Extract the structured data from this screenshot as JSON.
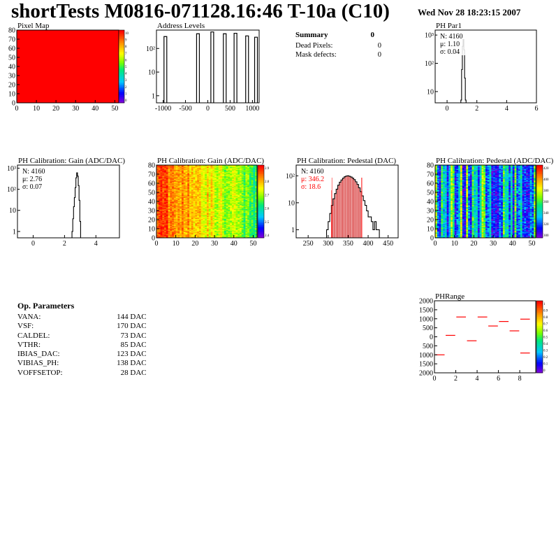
{
  "header": {
    "title": "shortTests M0816-071128.16:46 T-10a (C10)",
    "date": "Wed Nov 28 18:23:15 2007"
  },
  "summary": {
    "title": "Summary",
    "title_value": "0",
    "rows": [
      {
        "label": "Dead Pixels:",
        "value": "0"
      },
      {
        "label": "Mask defects:",
        "value": "0"
      }
    ]
  },
  "op_params": {
    "title": "Op. Parameters",
    "rows": [
      {
        "name": "VANA:",
        "value": "144 DAC"
      },
      {
        "name": "VSF:",
        "value": "170 DAC"
      },
      {
        "name": "CALDEL:",
        "value": "73 DAC"
      },
      {
        "name": "VTHR:",
        "value": "85 DAC"
      },
      {
        "name": "IBIAS_DAC:",
        "value": "123 DAC"
      },
      {
        "name": "VIBIAS_PH:",
        "value": "138 DAC"
      },
      {
        "name": "VOFFSETOP:",
        "value": "28 DAC"
      }
    ]
  },
  "colors": {
    "hist_line": "#000000",
    "red_marker": "#ff0000",
    "pedestal_fill": "#cc0000",
    "pixel_map_fill": "#ff0000"
  },
  "chart_data": [
    {
      "id": "pixel-map",
      "type": "heatmap",
      "title": "Pixel Map",
      "xlim": [
        0,
        52
      ],
      "ylim": [
        0,
        80
      ],
      "x_ticks": [
        0,
        10,
        20,
        30,
        40,
        50
      ],
      "y_ticks": [
        0,
        10,
        20,
        30,
        40,
        50,
        60,
        70,
        80
      ],
      "uniform_value": 10,
      "palette_ticks": [
        "10",
        "9",
        "8",
        "7",
        "6",
        "5",
        "4",
        "3",
        "2",
        "1",
        "0"
      ]
    },
    {
      "id": "address-levels",
      "type": "bar",
      "title": "Address Levels",
      "xlim": [
        -1150,
        1150
      ],
      "y_log": true,
      "ylim": [
        0.5,
        600
      ],
      "x_ticks": [
        -1000,
        -500,
        0,
        500,
        1000
      ],
      "y_ticks": [
        {
          "v": 1,
          "label": "1"
        },
        {
          "v": 10,
          "label": "10"
        },
        {
          "v": 100,
          "label": "10²"
        }
      ],
      "peaks": [
        {
          "x": -950,
          "y": 320
        },
        {
          "x": -220,
          "y": 420
        },
        {
          "x": 100,
          "y": 500
        },
        {
          "x": 380,
          "y": 420
        },
        {
          "x": 620,
          "y": 440
        },
        {
          "x": 880,
          "y": 340
        },
        {
          "x": 1080,
          "y": 300
        }
      ]
    },
    {
      "id": "ph-par1",
      "type": "bar",
      "title": "PH Par1",
      "xlim": [
        -0.8,
        6
      ],
      "y_log": true,
      "ylim": [
        4,
        1500
      ],
      "x_ticks": [
        0,
        2,
        4,
        6
      ],
      "y_ticks": [
        {
          "v": 10,
          "label": "10"
        },
        {
          "v": 100,
          "label": "10²"
        },
        {
          "v": 1000,
          "label": "10³"
        }
      ],
      "stats": {
        "N": "N: 4160",
        "mean": "μ: 1.10",
        "sigma": "σ: 0.04"
      },
      "bins_x": [
        0.95,
        1.0,
        1.05,
        1.1,
        1.15,
        1.2,
        1.25
      ],
      "bins_y": [
        5,
        60,
        400,
        700,
        300,
        30,
        5
      ]
    },
    {
      "id": "ph-gain-1d",
      "type": "bar",
      "title": "PH Calibration: Gain (ADC/DAC)",
      "xlim": [
        -1,
        5.5
      ],
      "y_log": true,
      "ylim": [
        0.5,
        1400
      ],
      "x_ticks": [
        0,
        2,
        4
      ],
      "y_ticks": [
        {
          "v": 1,
          "label": "1"
        },
        {
          "v": 10,
          "label": "10"
        },
        {
          "v": 100,
          "label": "10²"
        },
        {
          "v": 1000,
          "label": "10³"
        }
      ],
      "stats": {
        "N": "N: 4160",
        "mean": "μ: 2.76",
        "sigma": "σ: 0.07"
      },
      "bins_x": [
        2.5,
        2.55,
        2.6,
        2.65,
        2.7,
        2.75,
        2.8,
        2.85,
        2.9,
        2.95,
        3.0
      ],
      "bins_y": [
        1,
        4,
        15,
        40,
        120,
        350,
        600,
        420,
        150,
        30,
        3
      ]
    },
    {
      "id": "ph-gain-map",
      "type": "heatmap",
      "title": "PH Calibration: Gain (ADC/DAC)",
      "xlim": [
        0,
        52
      ],
      "ylim": [
        0,
        80
      ],
      "x_ticks": [
        0,
        10,
        20,
        30,
        40,
        50
      ],
      "y_ticks": [
        0,
        10,
        20,
        30,
        40,
        50,
        60,
        70,
        80
      ],
      "value_range": [
        2.3,
        2.9
      ],
      "palette_ticks": [
        "2.9",
        "2.8",
        "2.7",
        "2.6",
        "2.5",
        "2.4"
      ]
    },
    {
      "id": "ph-pedestal-1d",
      "type": "bar",
      "title": "PH Calibration: Pedestal (DAC)",
      "xlim": [
        220,
        475
      ],
      "y_log": true,
      "ylim": [
        0.5,
        250
      ],
      "x_ticks": [
        250,
        300,
        350,
        400,
        450
      ],
      "y_ticks": [
        {
          "v": 1,
          "label": "1"
        },
        {
          "v": 10,
          "label": "10"
        },
        {
          "v": 100,
          "label": "10²"
        }
      ],
      "stats": {
        "N": "N: 4160",
        "mean": "μ: 346.2",
        "sigma": "σ: 18.6"
      },
      "fit_range": [
        309,
        384
      ],
      "bins_x": [
        298,
        302,
        306,
        310,
        314,
        318,
        322,
        326,
        330,
        334,
        338,
        342,
        346,
        350,
        354,
        358,
        362,
        366,
        370,
        374,
        378,
        382,
        386,
        390,
        394,
        398,
        402,
        406,
        410,
        414,
        418,
        422,
        426
      ],
      "bins_y": [
        1,
        2,
        4,
        8,
        14,
        22,
        32,
        45,
        58,
        70,
        82,
        92,
        98,
        100,
        96,
        90,
        82,
        72,
        60,
        48,
        36,
        26,
        18,
        12,
        8,
        5,
        3,
        3,
        2,
        1,
        2,
        1,
        1
      ]
    },
    {
      "id": "ph-pedestal-map",
      "type": "heatmap",
      "title": "PH Calibration: Pedestal (ADC/DAC)",
      "xlim": [
        0,
        52
      ],
      "ylim": [
        0,
        80
      ],
      "x_ticks": [
        0,
        10,
        20,
        30,
        40,
        50
      ],
      "y_ticks": [
        0,
        10,
        20,
        30,
        40,
        50,
        60,
        70,
        80
      ],
      "value_range": [
        300,
        420
      ],
      "palette_ticks": [
        "420",
        "400",
        "380",
        "360",
        "340",
        "320",
        "300"
      ]
    },
    {
      "id": "ph-range",
      "type": "scatter",
      "title": "PHRange",
      "xlim": [
        0,
        9.5
      ],
      "ylim": [
        -2000,
        2000
      ],
      "x_ticks": [
        0,
        2,
        4,
        6,
        8
      ],
      "y_ticks": [
        {
          "v": 2000,
          "label": "2000"
        },
        {
          "v": 1500,
          "label": "1500"
        },
        {
          "v": 1000,
          "label": "1000"
        },
        {
          "v": 500,
          "label": "500"
        },
        {
          "v": 0,
          "label": "0"
        },
        {
          "v": -500,
          "label": "500"
        },
        {
          "v": -1000,
          "label": "1000"
        },
        {
          "v": -1500,
          "label": "1500"
        },
        {
          "v": -2000,
          "label": "2000"
        }
      ],
      "segments": [
        {
          "x": 0.5,
          "y": -1000
        },
        {
          "x": 1.5,
          "y": 80
        },
        {
          "x": 2.5,
          "y": 1100
        },
        {
          "x": 3.5,
          "y": -220
        },
        {
          "x": 4.5,
          "y": 1100
        },
        {
          "x": 5.5,
          "y": 600
        },
        {
          "x": 6.5,
          "y": 850
        },
        {
          "x": 7.5,
          "y": 330
        },
        {
          "x": 8.5,
          "y": 980
        },
        {
          "x": 8.5,
          "y": -900
        }
      ],
      "palette_ticks": [
        "1",
        "0.9",
        "0.8",
        "0.7",
        "0.6",
        "0.5",
        "0.4",
        "0.3",
        "0.2",
        "0.1",
        "0"
      ]
    }
  ]
}
